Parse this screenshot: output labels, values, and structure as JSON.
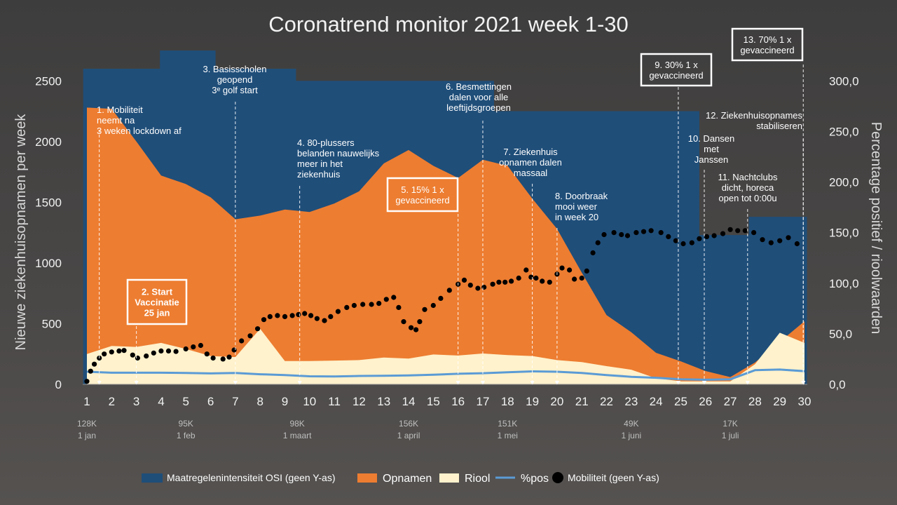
{
  "chart_data": {
    "type": "area",
    "title": "Coronatrend monitor 2021 week 1-30",
    "ylabel_left": "Nieuwe ziekenhuisopnamen per week",
    "ylabel_right": "Percentage positief / rioolwaarden",
    "ylim_left": [
      0,
      2750
    ],
    "ylim_right": [
      0,
      330
    ],
    "yticks_left": [
      "0",
      "500",
      "1000",
      "1500",
      "2000",
      "2500"
    ],
    "yticks_right": [
      "0,0",
      "50,0",
      "100,0",
      "150,0",
      "200,0",
      "250,0",
      "300,0"
    ],
    "xlim": [
      0.85,
      30.1
    ],
    "x_ticks": [
      "1",
      "2",
      "3",
      "4",
      "5",
      "6",
      "7",
      "8",
      "9",
      "10",
      "11",
      "12",
      "13",
      "14",
      "15",
      "16",
      "17",
      "18",
      "19",
      "20",
      "21",
      "22",
      "23",
      "24",
      "25",
      "26",
      "27",
      "28",
      "29",
      "30"
    ],
    "date_labels": [
      {
        "x": 1,
        "top": "128K",
        "bottom": "1 jan"
      },
      {
        "x": 5,
        "top": "95K",
        "bottom": "1 feb"
      },
      {
        "x": 9.5,
        "top": "98K",
        "bottom": "1 maart"
      },
      {
        "x": 14,
        "top": "156K",
        "bottom": "1 april"
      },
      {
        "x": 18,
        "top": "151K",
        "bottom": "1 mei"
      },
      {
        "x": 23,
        "top": "49K",
        "bottom": "1 juni"
      },
      {
        "x": 27,
        "top": "17K",
        "bottom": "1 juli"
      }
    ],
    "series": [
      {
        "name": "Maatregelenintensiteit OSI  (geen Y-as)",
        "type": "step",
        "color": "#1f4e79",
        "points": [
          [
            0.85,
            2600
          ],
          [
            3.95,
            2600
          ],
          [
            3.95,
            2750
          ],
          [
            6.2,
            2750
          ],
          [
            6.2,
            2600
          ],
          [
            9.45,
            2600
          ],
          [
            9.45,
            2500
          ],
          [
            17.45,
            2500
          ],
          [
            17.45,
            2250
          ],
          [
            25.75,
            2250
          ],
          [
            25.75,
            1230
          ],
          [
            27.75,
            1230
          ],
          [
            27.75,
            1380
          ],
          [
            30.1,
            1380
          ]
        ]
      },
      {
        "name": "Opnamen",
        "type": "area",
        "color": "#ed7d31",
        "points": [
          [
            1,
            2280
          ],
          [
            2,
            2270
          ],
          [
            3,
            2000
          ],
          [
            4,
            1720
          ],
          [
            5,
            1650
          ],
          [
            6,
            1540
          ],
          [
            7,
            1360
          ],
          [
            8,
            1390
          ],
          [
            9,
            1440
          ],
          [
            10,
            1420
          ],
          [
            11,
            1490
          ],
          [
            12,
            1590
          ],
          [
            13,
            1820
          ],
          [
            14,
            1930
          ],
          [
            15,
            1800
          ],
          [
            16,
            1700
          ],
          [
            17,
            1850
          ],
          [
            18,
            1800
          ],
          [
            19,
            1530
          ],
          [
            20,
            1280
          ],
          [
            21,
            920
          ],
          [
            22,
            570
          ],
          [
            23,
            430
          ],
          [
            24,
            260
          ],
          [
            25,
            190
          ],
          [
            26,
            110
          ],
          [
            27,
            60
          ],
          [
            28,
            180
          ],
          [
            29,
            350
          ],
          [
            30,
            520
          ]
        ]
      },
      {
        "name": "Riool",
        "type": "area",
        "color": "#fff2cc",
        "axis": "right",
        "points": [
          [
            1,
            30
          ],
          [
            2,
            38
          ],
          [
            3,
            37
          ],
          [
            4,
            41
          ],
          [
            5,
            35
          ],
          [
            6,
            28
          ],
          [
            7,
            27
          ],
          [
            8,
            55
          ],
          [
            9,
            23
          ],
          [
            10,
            23
          ],
          [
            11,
            23.5
          ],
          [
            12,
            24
          ],
          [
            13,
            26.5
          ],
          [
            14,
            25.5
          ],
          [
            15,
            29.5
          ],
          [
            16,
            28.5
          ],
          [
            17,
            30.5
          ],
          [
            18,
            29
          ],
          [
            19,
            28
          ],
          [
            20,
            24
          ],
          [
            21,
            22
          ],
          [
            22,
            18
          ],
          [
            23,
            14.5
          ],
          [
            24,
            6
          ],
          [
            25,
            3
          ],
          [
            26,
            3
          ],
          [
            27,
            3
          ],
          [
            28,
            20
          ],
          [
            29,
            51
          ],
          [
            30,
            41
          ]
        ]
      },
      {
        "name": "%pos",
        "type": "line",
        "color": "#5b9bd5",
        "axis": "right",
        "points": [
          [
            1,
            12.5
          ],
          [
            2,
            11.5
          ],
          [
            3,
            11.5
          ],
          [
            4,
            11.5
          ],
          [
            5,
            11.2
          ],
          [
            6,
            10.8
          ],
          [
            7,
            11.2
          ],
          [
            8,
            10
          ],
          [
            9,
            9.2
          ],
          [
            10,
            8
          ],
          [
            11,
            7.8
          ],
          [
            12,
            8.3
          ],
          [
            13,
            8.5
          ],
          [
            14,
            8.8
          ],
          [
            15,
            9.5
          ],
          [
            16,
            10.5
          ],
          [
            17,
            11
          ],
          [
            18,
            12
          ],
          [
            19,
            12.8
          ],
          [
            20,
            12.5
          ],
          [
            21,
            11.3
          ],
          [
            22,
            9.2
          ],
          [
            23,
            7.5
          ],
          [
            24,
            6.5
          ],
          [
            25,
            5
          ],
          [
            26,
            4.6
          ],
          [
            27,
            5
          ],
          [
            28,
            14
          ],
          [
            29,
            14.6
          ],
          [
            30,
            13
          ]
        ]
      },
      {
        "name": "Mobiliteit (geen Y-as)",
        "type": "dots",
        "color": "#000000",
        "axis": "right",
        "points": [
          [
            1,
            3
          ],
          [
            1.15,
            13
          ],
          [
            1.3,
            20
          ],
          [
            1.5,
            26
          ],
          [
            1.7,
            30
          ],
          [
            2,
            32
          ],
          [
            2.3,
            33
          ],
          [
            2.5,
            33.5
          ],
          [
            2.85,
            29
          ],
          [
            3.05,
            26
          ],
          [
            3.4,
            28
          ],
          [
            3.7,
            31
          ],
          [
            4,
            33
          ],
          [
            4.3,
            33
          ],
          [
            4.6,
            32.5
          ],
          [
            5,
            35
          ],
          [
            5.3,
            37
          ],
          [
            5.6,
            38.5
          ],
          [
            5.85,
            30
          ],
          [
            6.1,
            26
          ],
          [
            6.5,
            25
          ],
          [
            6.75,
            27
          ],
          [
            6.95,
            34
          ],
          [
            7.25,
            43
          ],
          [
            7.6,
            48
          ],
          [
            7.9,
            55
          ],
          [
            8.15,
            64
          ],
          [
            8.4,
            67
          ],
          [
            8.7,
            68
          ],
          [
            9,
            67
          ],
          [
            9.3,
            68
          ],
          [
            9.55,
            69
          ],
          [
            9.8,
            70
          ],
          [
            10.05,
            68
          ],
          [
            10.3,
            65
          ],
          [
            10.6,
            63
          ],
          [
            10.85,
            67
          ],
          [
            11.15,
            72
          ],
          [
            11.5,
            76
          ],
          [
            11.8,
            78
          ],
          [
            12.15,
            79
          ],
          [
            12.5,
            79
          ],
          [
            12.8,
            80
          ],
          [
            13.1,
            84
          ],
          [
            13.4,
            86
          ],
          [
            13.6,
            76
          ],
          [
            13.8,
            62
          ],
          [
            14.1,
            56
          ],
          [
            14.3,
            54
          ],
          [
            14.45,
            62
          ],
          [
            14.65,
            74
          ],
          [
            15,
            78
          ],
          [
            15.3,
            85
          ],
          [
            15.65,
            93
          ],
          [
            16,
            99
          ],
          [
            16.25,
            103
          ],
          [
            16.5,
            98
          ],
          [
            16.8,
            95
          ],
          [
            17.05,
            96
          ],
          [
            17.4,
            99
          ],
          [
            17.65,
            101
          ],
          [
            17.9,
            101
          ],
          [
            18.15,
            102
          ],
          [
            18.45,
            105
          ],
          [
            18.75,
            113
          ],
          [
            18.95,
            106
          ],
          [
            19.15,
            105
          ],
          [
            19.4,
            102
          ],
          [
            19.7,
            101
          ],
          [
            20,
            109
          ],
          [
            20.2,
            115
          ],
          [
            20.5,
            113
          ],
          [
            20.7,
            104
          ],
          [
            21,
            105
          ],
          [
            21.2,
            112
          ],
          [
            21.45,
            130
          ],
          [
            21.65,
            140
          ],
          [
            21.9,
            148
          ],
          [
            22.3,
            150
          ],
          [
            22.6,
            148
          ],
          [
            22.85,
            147
          ],
          [
            23.2,
            150
          ],
          [
            23.5,
            151
          ],
          [
            23.8,
            152
          ],
          [
            24.2,
            150
          ],
          [
            24.5,
            146
          ],
          [
            24.8,
            142
          ],
          [
            25.1,
            139
          ],
          [
            25.45,
            140
          ],
          [
            25.75,
            144
          ],
          [
            26.05,
            146
          ],
          [
            26.35,
            147
          ],
          [
            26.7,
            149
          ],
          [
            27,
            153
          ],
          [
            27.3,
            152
          ],
          [
            27.6,
            152
          ],
          [
            27.95,
            150
          ],
          [
            28.3,
            143
          ],
          [
            28.65,
            140
          ],
          [
            29,
            142
          ],
          [
            29.35,
            145
          ],
          [
            29.7,
            139
          ]
        ]
      }
    ],
    "annotations": [
      {
        "x": 1.5,
        "lines": [
          "1. Mobiliteit",
          "neemt na",
          "3  weken lockdown af"
        ],
        "boxed": false
      },
      {
        "x": 3,
        "lines": [
          "2. Start",
          "Vaccinatie",
          "25 jan"
        ],
        "boxed": true
      },
      {
        "x": 7,
        "lines": [
          "3. Basisscholen",
          "geopend",
          "3ᵉ golf start"
        ],
        "boxed": false
      },
      {
        "x": 9.6,
        "lines": [
          "4. 80-plussers",
          "belanden nauwelijks",
          "meer in het",
          "ziekenhuis"
        ],
        "boxed": false
      },
      {
        "x": 16,
        "lines": [
          "5. 15% 1 x",
          "gevaccineerd"
        ],
        "boxed": true
      },
      {
        "x": 17,
        "lines": [
          "6. Besmettingen",
          "dalen voor alle",
          "leeftijdsgroepen"
        ],
        "boxed": false
      },
      {
        "x": 19,
        "lines": [
          "7. Ziekenhuis",
          "opnamen dalen",
          "massaal"
        ],
        "boxed": false
      },
      {
        "x": 20,
        "lines": [
          "8. Doorbraak",
          "mooi weer",
          "in week 20"
        ],
        "boxed": false
      },
      {
        "x": 24.9,
        "lines": [
          "9. 30% 1 x",
          "gevaccineerd"
        ],
        "boxed": true
      },
      {
        "x": 25.95,
        "lines": [
          "10. Dansen",
          "met",
          "Janssen"
        ],
        "boxed": false
      },
      {
        "x": 27.7,
        "lines": [
          "11. Nachtclubs",
          "dicht, horeca",
          "open tot 0:00u"
        ],
        "boxed": false
      },
      {
        "x": 29.95,
        "lines": [
          "12. Ziekenhuisopnames",
          "stabiliseren"
        ],
        "boxed": false
      },
      {
        "x": 29.95,
        "lines": [
          "13. 70% 1 x",
          "gevaccineerd"
        ],
        "boxed": true
      }
    ],
    "legend": {
      "placement": "bottom",
      "items": [
        "Maatregelenintensiteit OSI  (geen Y-as)",
        "Opnamen",
        "Riool",
        "%pos",
        "Mobiliteit (geen Y-as)"
      ]
    }
  }
}
